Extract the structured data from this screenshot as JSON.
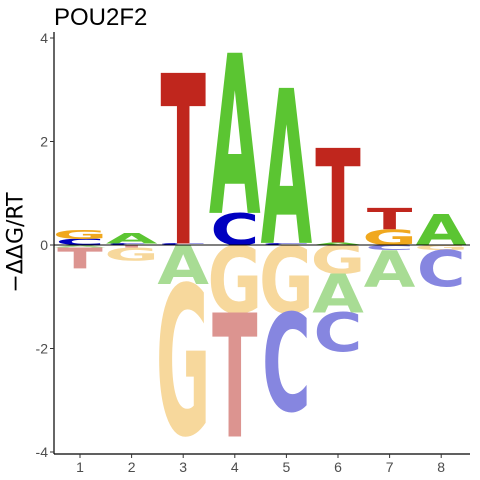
{
  "chart_data": {
    "type": "sequence-logo",
    "title": "POU2F2",
    "ylabel": "−ΔΔG/RT",
    "ylim": [
      -4,
      4
    ],
    "yticks": [
      -4,
      -2,
      0,
      2,
      4
    ],
    "positions": [
      1,
      2,
      3,
      4,
      5,
      6,
      7,
      8
    ],
    "colors": {
      "A": "#5bc532",
      "C": "#0000c0",
      "G": "#f0a81e",
      "T": "#c0261d"
    },
    "colors_negative": {
      "A": "#a8dc94",
      "C": "#8686e0",
      "G": "#f7d89c",
      "T": "#dc9490"
    },
    "stacks": [
      {
        "position": 1,
        "positive": [
          {
            "base": "C",
            "value": 0.12
          },
          {
            "base": "G",
            "value": 0.18
          }
        ],
        "negative": [
          {
            "base": "A",
            "value": 0.05
          },
          {
            "base": "T",
            "value": 0.4
          }
        ]
      },
      {
        "position": 2,
        "positive": [
          {
            "base": "C",
            "value": 0.03
          },
          {
            "base": "A",
            "value": 0.2
          }
        ],
        "negative": [
          {
            "base": "T",
            "value": 0.05
          },
          {
            "base": "G",
            "value": 0.25
          }
        ]
      },
      {
        "position": 3,
        "positive": [
          {
            "base": "C",
            "value": 0.03
          },
          {
            "base": "T",
            "value": 3.3
          }
        ],
        "negative": [
          {
            "base": "A",
            "value": 0.75
          },
          {
            "base": "G",
            "value": 2.9
          }
        ]
      },
      {
        "position": 4,
        "positive": [
          {
            "base": "C",
            "value": 0.62
          },
          {
            "base": "A",
            "value": 3.1
          }
        ],
        "negative": [
          {
            "base": "G",
            "value": 1.3
          },
          {
            "base": "T",
            "value": 2.4
          }
        ]
      },
      {
        "position": 5,
        "positive": [
          {
            "base": "C",
            "value": 0.04
          },
          {
            "base": "A",
            "value": 3.0
          }
        ],
        "negative": [
          {
            "base": "G",
            "value": 1.3
          },
          {
            "base": "C",
            "value": 1.9
          }
        ]
      },
      {
        "position": 6,
        "positive": [
          {
            "base": "A",
            "value": 0.05
          },
          {
            "base": "T",
            "value": 1.83
          }
        ],
        "negative": [
          {
            "base": "G",
            "value": 0.55
          },
          {
            "base": "A",
            "value": 0.75
          },
          {
            "base": "C",
            "value": 0.75
          }
        ]
      },
      {
        "position": 7,
        "positive": [
          {
            "base": "G",
            "value": 0.3
          },
          {
            "base": "T",
            "value": 0.42
          }
        ],
        "negative": [
          {
            "base": "C",
            "value": 0.1
          },
          {
            "base": "A",
            "value": 0.7
          }
        ]
      },
      {
        "position": 8,
        "positive": [
          {
            "base": "A",
            "value": 0.6
          }
        ],
        "negative": [
          {
            "base": "G",
            "value": 0.1
          },
          {
            "base": "C",
            "value": 0.7
          }
        ]
      }
    ]
  }
}
